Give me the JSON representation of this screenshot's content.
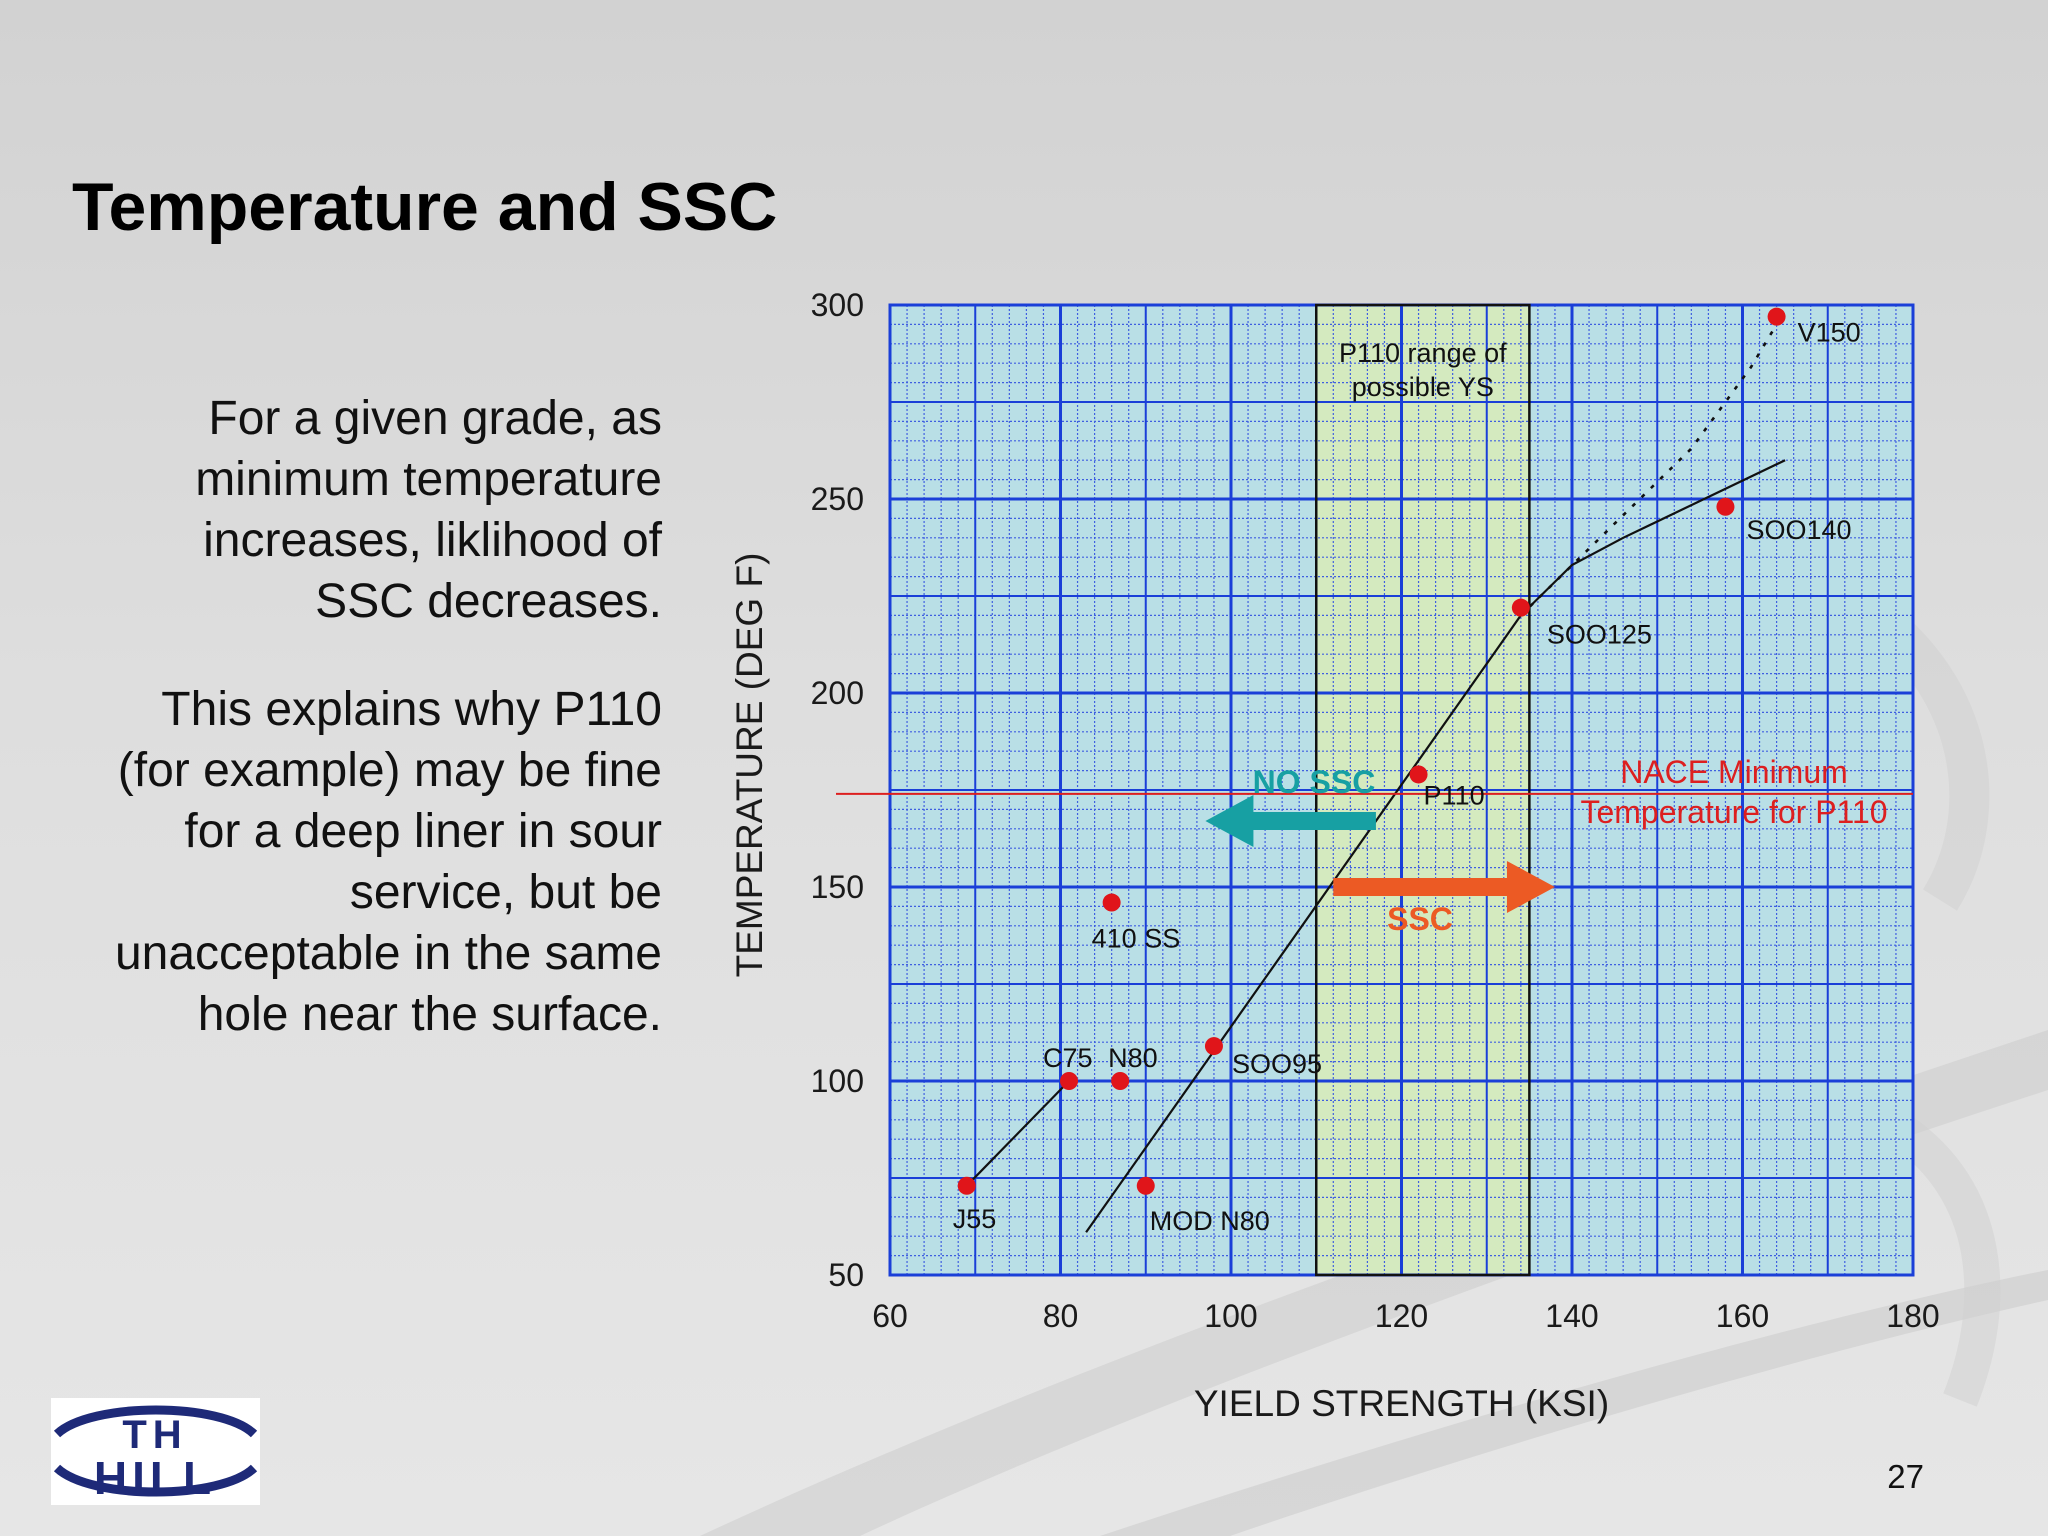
{
  "slide": {
    "title": "Temperature and SSC",
    "paragraph1": [
      "For a given grade, as",
      "minimum temperature",
      "increases, liklihood of",
      "SSC decreases."
    ],
    "paragraph2": [
      "This explains why P110",
      "(for example) may be fine",
      "for a deep liner in sour",
      "service, but be",
      "unacceptable in the same",
      "hole near the surface."
    ],
    "page_number": "27",
    "logo_text": "TH HILL"
  },
  "colors": {
    "plot_bg": "#b9dfe6",
    "grid_major": "#1a3fd8",
    "grid_minor": "#3f5fe0",
    "band_fill": "#d4eabf",
    "point": "#e0151a",
    "nace_line": "#dd1f1f",
    "no_ssc_arrow": "#17a0a3",
    "ssc_arrow": "#ec5a24",
    "logo_blue": "#1e2a78"
  },
  "chart_data": {
    "type": "scatter",
    "xlabel": "YIELD STRENGTH (KSI)",
    "ylabel": "TEMPERATURE (DEG F)",
    "xlim": [
      60,
      180
    ],
    "ylim": [
      50,
      300
    ],
    "xticks": [
      60,
      80,
      100,
      120,
      140,
      160,
      180
    ],
    "yticks": [
      50,
      100,
      150,
      200,
      250,
      300
    ],
    "grid": true,
    "points": [
      {
        "label": "J55",
        "x": 69,
        "y": 73
      },
      {
        "label": "C75",
        "x": 81,
        "y": 100
      },
      {
        "label": "N80",
        "x": 87,
        "y": 100
      },
      {
        "label": "MOD N80",
        "x": 90,
        "y": 73
      },
      {
        "label": "410 SS",
        "x": 86,
        "y": 146
      },
      {
        "label": "SOO95",
        "x": 98,
        "y": 109
      },
      {
        "label": "P110",
        "x": 122,
        "y": 179
      },
      {
        "label": "SOO125",
        "x": 134,
        "y": 222
      },
      {
        "label": "SOO140",
        "x": 158,
        "y": 248
      },
      {
        "label": "V150",
        "x": 164,
        "y": 297
      }
    ],
    "trend_lines": [
      {
        "style": "solid",
        "points": [
          [
            69,
            73
          ],
          [
            81,
            100
          ]
        ]
      },
      {
        "style": "solid",
        "points": [
          [
            83,
            61
          ],
          [
            134,
            220
          ],
          [
            140,
            233
          ],
          [
            146,
            240
          ],
          [
            165,
            260
          ]
        ]
      },
      {
        "style": "dotted",
        "points": [
          [
            134,
            220
          ],
          [
            154,
            263
          ],
          [
            161,
            284
          ],
          [
            164,
            295
          ]
        ]
      }
    ],
    "band": {
      "x0": 110,
      "x1": 135,
      "label": [
        "P110 range of",
        "possible YS"
      ]
    },
    "reference_line": {
      "y": 174,
      "label": [
        "NACE Minimum",
        "Temperature for P110"
      ]
    },
    "arrows": [
      {
        "label": "NO SSC",
        "direction": "left",
        "from_x": 117,
        "to_x": 97,
        "y": 167
      },
      {
        "label": "SSC",
        "direction": "right",
        "from_x": 112,
        "to_x": 138,
        "y": 150
      }
    ]
  }
}
